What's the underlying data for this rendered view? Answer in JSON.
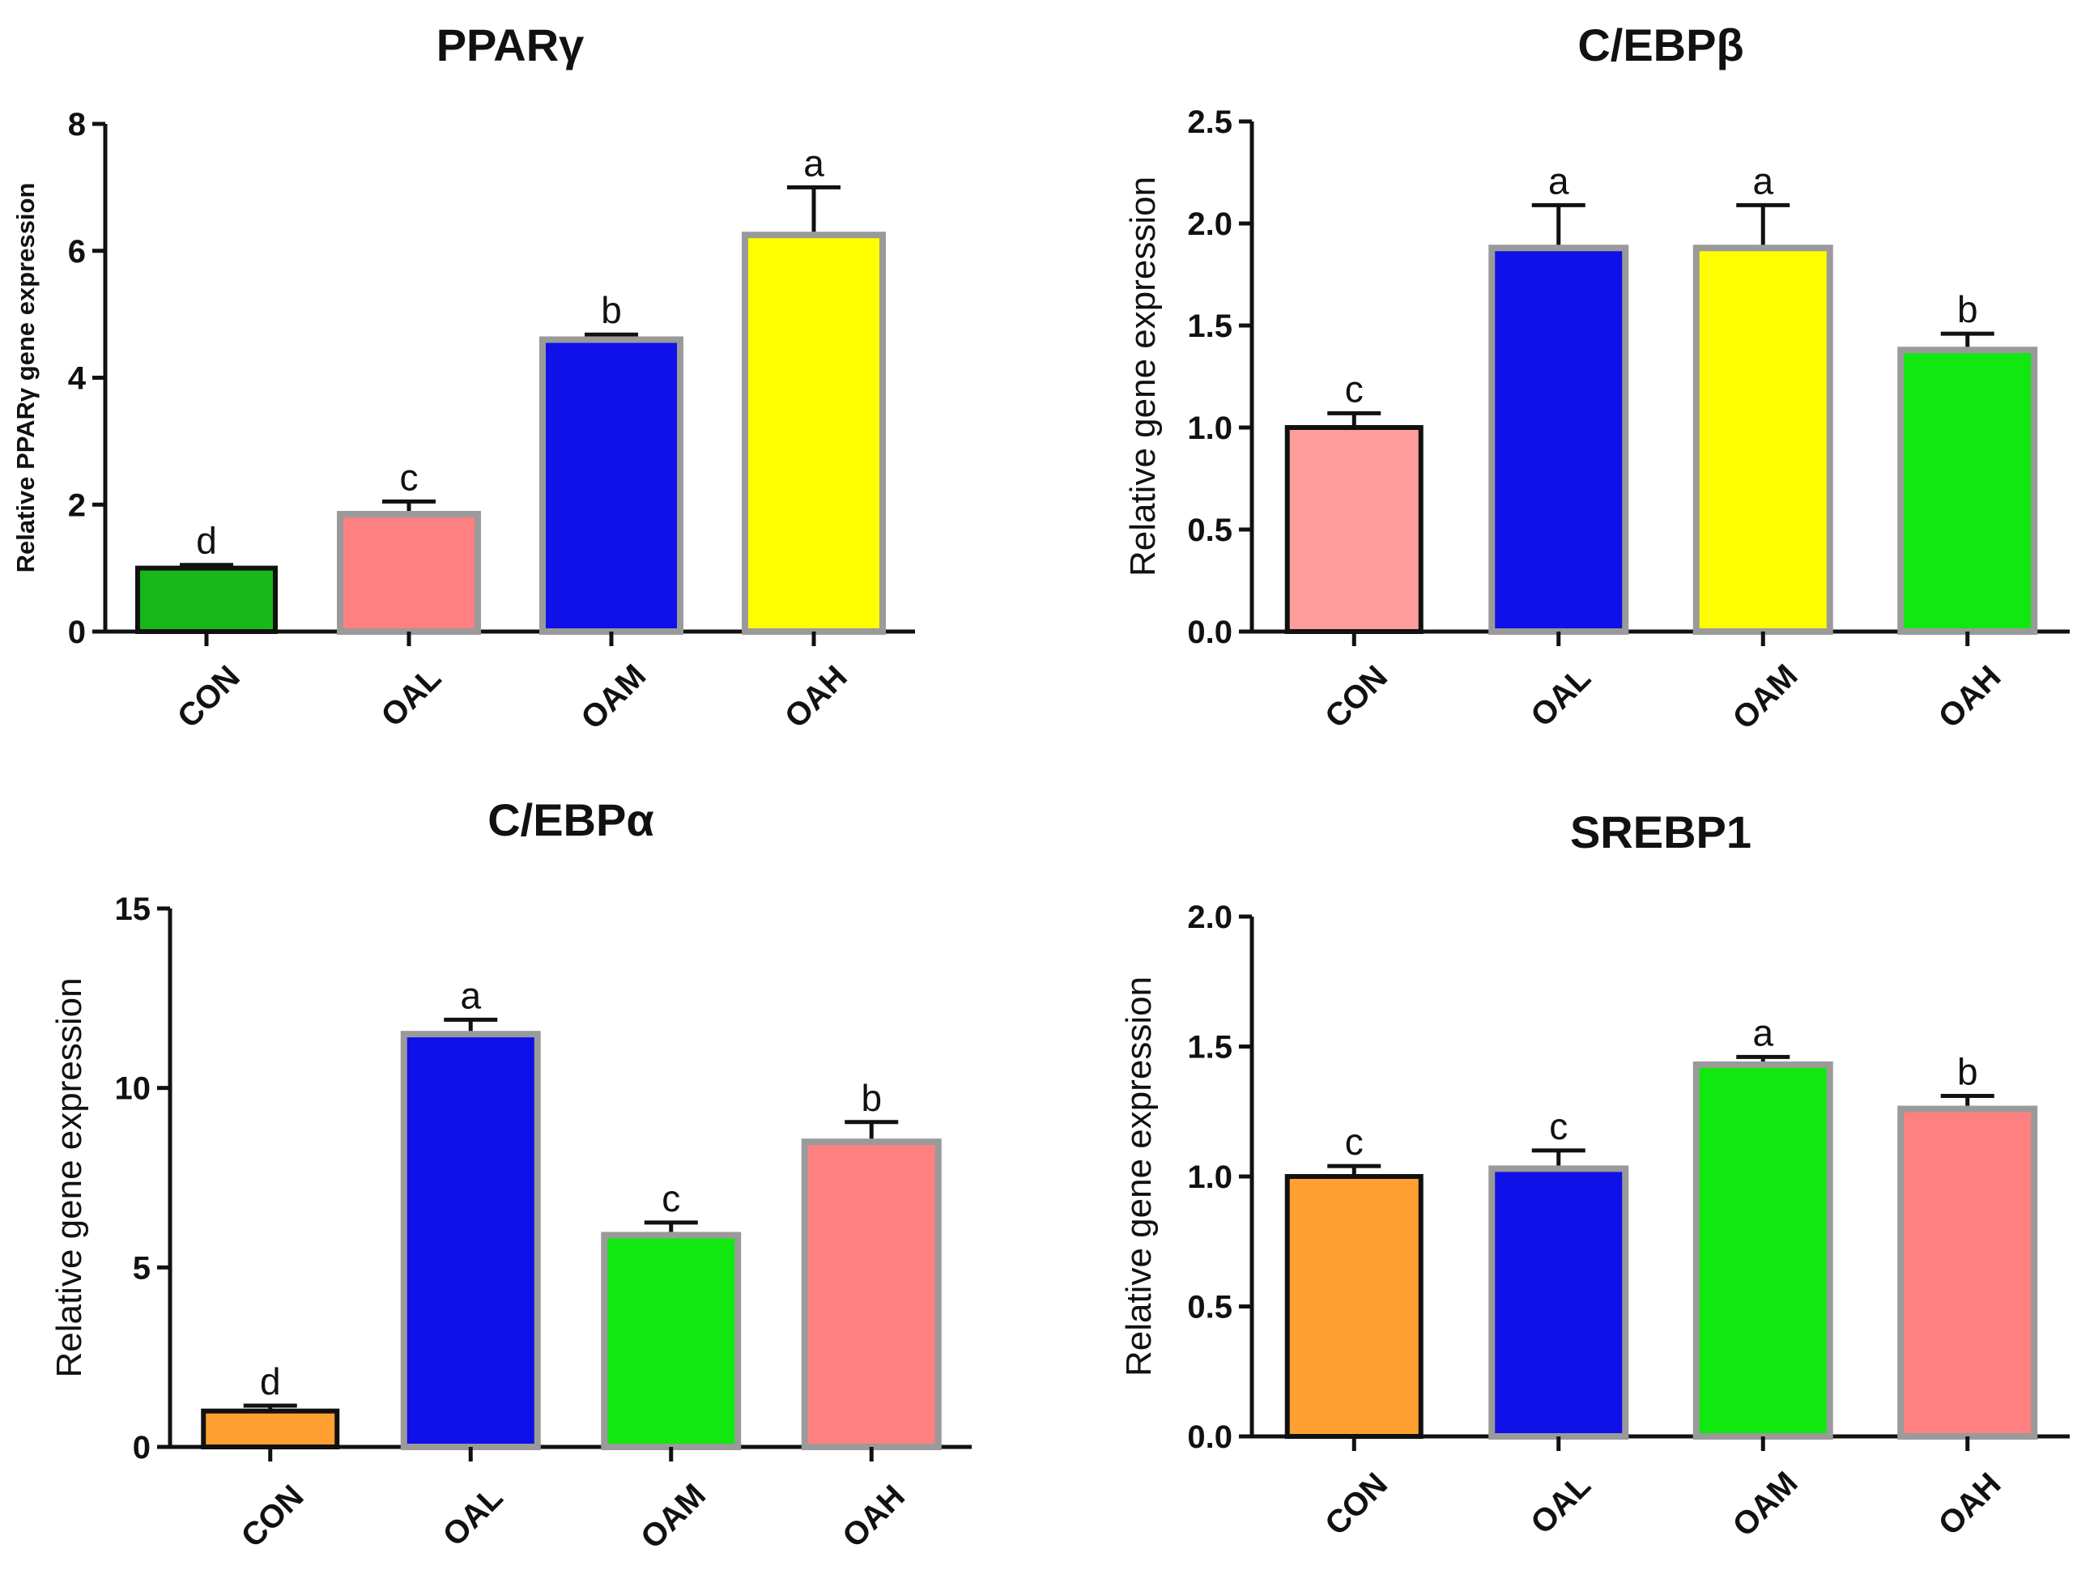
{
  "chart_data": [
    {
      "type": "bar",
      "title": "PPARγ",
      "ylabel": "Relative PPARγ gene expression",
      "categories": [
        "CON",
        "OAL",
        "OAM",
        "OAH"
      ],
      "ylim": [
        0,
        8
      ],
      "yticks": [
        "0",
        "2",
        "4",
        "6",
        "8"
      ],
      "values": [
        1.0,
        1.85,
        4.6,
        6.25
      ],
      "errors": [
        0.05,
        0.2,
        0.08,
        0.75
      ],
      "significance": [
        "d",
        "c",
        "b",
        "a"
      ],
      "colors": [
        "#17b817",
        "#ff8080",
        "#1010e8",
        "#ffff00"
      ],
      "grid": false,
      "legend": "none"
    },
    {
      "type": "bar",
      "title": "C/EBPβ",
      "ylabel": "Relative gene expression",
      "categories": [
        "CON",
        "OAL",
        "OAM",
        "OAH"
      ],
      "ylim": [
        0,
        2.5
      ],
      "yticks": [
        "0.0",
        "0.5",
        "1.0",
        "1.5",
        "2.0",
        "2.5"
      ],
      "values": [
        1.0,
        1.88,
        1.88,
        1.38
      ],
      "errors": [
        0.07,
        0.21,
        0.21,
        0.08
      ],
      "significance": [
        "c",
        "a",
        "a",
        "b"
      ],
      "colors": [
        "#ff9c9c",
        "#1010e8",
        "#ffff00",
        "#10e810"
      ],
      "grid": false,
      "legend": "none"
    },
    {
      "type": "bar",
      "title": "C/EBPα",
      "ylabel": "Relative gene expression",
      "categories": [
        "CON",
        "OAL",
        "OAM",
        "OAH"
      ],
      "ylim": [
        0,
        15
      ],
      "yticks": [
        "0",
        "5",
        "10",
        "15"
      ],
      "values": [
        1.0,
        11.5,
        5.9,
        8.5
      ],
      "errors": [
        0.15,
        0.4,
        0.35,
        0.55
      ],
      "significance": [
        "d",
        "a",
        "c",
        "b"
      ],
      "colors": [
        "#ffa030",
        "#1010e8",
        "#10e810",
        "#ff8080"
      ],
      "grid": false,
      "legend": "none"
    },
    {
      "type": "bar",
      "title": "SREBP1",
      "ylabel": "Relative gene expression",
      "categories": [
        "CON",
        "OAL",
        "OAM",
        "OAH"
      ],
      "ylim": [
        0,
        2.0
      ],
      "yticks": [
        "0.0",
        "0.5",
        "1.0",
        "1.5",
        "2.0"
      ],
      "values": [
        1.0,
        1.03,
        1.43,
        1.26
      ],
      "errors": [
        0.04,
        0.07,
        0.03,
        0.05
      ],
      "significance": [
        "c",
        "c",
        "a",
        "b"
      ],
      "colors": [
        "#ffa030",
        "#1010e8",
        "#10e810",
        "#ff8080"
      ],
      "grid": false,
      "legend": "none"
    }
  ]
}
